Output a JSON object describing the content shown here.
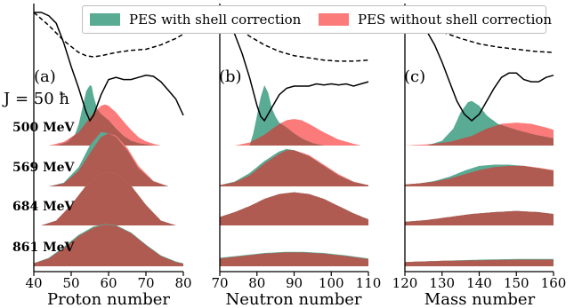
{
  "legend": {
    "with_shell": "PES with shell correction",
    "without_shell": "PES without shell correction"
  },
  "colors": {
    "with_shell": "#5aab94",
    "without_shell": "#fb7b7b",
    "overlap": "#b05b52",
    "j_label": "#ee1111"
  },
  "j_label": "J = 50 ħ",
  "energies": [
    "500 MeV",
    "569 MeV",
    "684 MeV",
    "861 MeV"
  ],
  "chart_data": [
    {
      "type": "area",
      "panel": "(a)",
      "xlabel": "Proton number",
      "xlim": [
        40,
        80
      ],
      "xticks": [
        40,
        50,
        60,
        70,
        80
      ],
      "rows": [
        {
          "energy": "500 MeV",
          "with_shell": {
            "x": [
              46,
              49,
              51,
              52,
              53,
              54,
              55,
              55.5,
              56,
              57,
              58,
              60,
              62,
              64,
              66,
              68,
              70,
              72
            ],
            "y": [
              0,
              0.06,
              0.18,
              0.35,
              0.62,
              0.9,
              1.0,
              0.98,
              0.82,
              0.6,
              0.52,
              0.42,
              0.28,
              0.16,
              0.08,
              0.04,
              0.02,
              0
            ]
          },
          "without_shell": {
            "x": [
              44,
              48,
              52,
              54,
              56,
              58,
              59,
              60,
              62,
              64,
              66,
              68,
              70,
              72,
              74
            ],
            "y": [
              0,
              0.06,
              0.22,
              0.38,
              0.55,
              0.66,
              0.68,
              0.66,
              0.55,
              0.4,
              0.26,
              0.14,
              0.07,
              0.03,
              0
            ]
          }
        },
        {
          "energy": "569 MeV",
          "with_shell": {
            "x": [
              44,
              48,
              52,
              55,
              58,
              60,
              62,
              65,
              68,
              72,
              76
            ],
            "y": [
              0,
              0.06,
              0.32,
              0.68,
              0.9,
              0.88,
              0.82,
              0.6,
              0.3,
              0.08,
              0
            ]
          },
          "without_shell": {
            "x": [
              44,
              48,
              52,
              55,
              58,
              60,
              62,
              65,
              68,
              72,
              76
            ],
            "y": [
              0,
              0.05,
              0.26,
              0.55,
              0.82,
              0.88,
              0.84,
              0.64,
              0.34,
              0.09,
              0
            ]
          }
        },
        {
          "energy": "684 MeV",
          "with_shell": {
            "x": [
              42,
              46,
              50,
              54,
              58,
              60,
              62,
              66,
              70,
              74,
              78
            ],
            "y": [
              0,
              0.08,
              0.34,
              0.66,
              0.86,
              0.88,
              0.86,
              0.66,
              0.34,
              0.08,
              0
            ]
          },
          "without_shell": {
            "x": [
              42,
              46,
              50,
              54,
              58,
              60,
              62,
              66,
              70,
              74,
              78
            ],
            "y": [
              0,
              0.08,
              0.34,
              0.66,
              0.86,
              0.88,
              0.86,
              0.66,
              0.34,
              0.08,
              0
            ]
          }
        },
        {
          "energy": "861 MeV",
          "with_shell": {
            "x": [
              40,
              44,
              48,
              52,
              56,
              59,
              62,
              66,
              70,
              74,
              78,
              80
            ],
            "y": [
              0.05,
              0.14,
              0.32,
              0.52,
              0.66,
              0.7,
              0.68,
              0.56,
              0.36,
              0.18,
              0.08,
              0.05
            ]
          },
          "without_shell": {
            "x": [
              40,
              44,
              48,
              52,
              56,
              59,
              62,
              66,
              70,
              74,
              78,
              80
            ],
            "y": [
              0.05,
              0.13,
              0.3,
              0.5,
              0.64,
              0.69,
              0.67,
              0.55,
              0.35,
              0.17,
              0.07,
              0.04
            ]
          }
        }
      ],
      "pes_with_shell": {
        "x": [
          40,
          42,
          44,
          46,
          48,
          50,
          52,
          54,
          55,
          56,
          58,
          60,
          62,
          64,
          66,
          68,
          70,
          72,
          74,
          76,
          78,
          80
        ],
        "y": [
          1.0,
          1.0,
          0.97,
          0.9,
          0.72,
          0.5,
          0.3,
          0.08,
          0.0,
          0.05,
          0.24,
          0.38,
          0.4,
          0.38,
          0.38,
          0.4,
          0.42,
          0.41,
          0.36,
          0.28,
          0.2,
          0.05
        ]
      },
      "pes_without_shell": {
        "x": [
          40,
          44,
          48,
          52,
          54,
          56,
          58,
          62,
          66,
          70,
          74,
          78,
          80
        ],
        "y": [
          1.0,
          0.88,
          0.74,
          0.63,
          0.6,
          0.59,
          0.6,
          0.63,
          0.65,
          0.66,
          0.7,
          0.76,
          0.8
        ]
      }
    },
    {
      "type": "area",
      "panel": "(b)",
      "xlabel": "Neutron number",
      "xlim": [
        70,
        110
      ],
      "xticks": [
        70,
        80,
        90,
        100,
        110
      ],
      "rows": [
        {
          "energy": "500 MeV",
          "with_shell": {
            "x": [
              78,
              79,
              80,
              81,
              82,
              83,
              84,
              85,
              86,
              88,
              90,
              92,
              95,
              98
            ],
            "y": [
              0,
              0.2,
              0.5,
              0.8,
              1.0,
              0.88,
              0.62,
              0.48,
              0.38,
              0.3,
              0.2,
              0.12,
              0.04,
              0
            ]
          },
          "without_shell": {
            "x": [
              74,
              78,
              82,
              86,
              88,
              90,
              92,
              94,
              98,
              102,
              106,
              108
            ],
            "y": [
              0,
              0.05,
              0.18,
              0.36,
              0.42,
              0.44,
              0.42,
              0.36,
              0.22,
              0.1,
              0.03,
              0
            ]
          }
        },
        {
          "energy": "569 MeV",
          "with_shell": {
            "x": [
              70,
              74,
              78,
              82,
              86,
              88,
              90,
              94,
              98,
              102,
              106,
              110
            ],
            "y": [
              0.02,
              0.08,
              0.22,
              0.42,
              0.58,
              0.62,
              0.6,
              0.5,
              0.34,
              0.18,
              0.07,
              0.02
            ]
          },
          "without_shell": {
            "x": [
              70,
              74,
              78,
              82,
              86,
              88,
              90,
              94,
              98,
              102,
              106,
              110
            ],
            "y": [
              0.02,
              0.07,
              0.18,
              0.38,
              0.54,
              0.6,
              0.6,
              0.52,
              0.36,
              0.2,
              0.08,
              0.02
            ]
          }
        },
        {
          "energy": "684 MeV",
          "with_shell": {
            "x": [
              70,
              74,
              78,
              82,
              86,
              90,
              94,
              98,
              102,
              106,
              110
            ],
            "y": [
              0.14,
              0.22,
              0.32,
              0.44,
              0.52,
              0.55,
              0.52,
              0.44,
              0.32,
              0.2,
              0.1
            ]
          },
          "without_shell": {
            "x": [
              70,
              74,
              78,
              82,
              86,
              90,
              94,
              98,
              102,
              106,
              110
            ],
            "y": [
              0.14,
              0.22,
              0.32,
              0.44,
              0.52,
              0.55,
              0.52,
              0.44,
              0.32,
              0.2,
              0.1
            ]
          }
        },
        {
          "energy": "861 MeV",
          "with_shell": {
            "x": [
              70,
              76,
              82,
              88,
              92,
              98,
              104,
              110
            ],
            "y": [
              0.14,
              0.18,
              0.22,
              0.24,
              0.24,
              0.22,
              0.18,
              0.13
            ]
          },
          "without_shell": {
            "x": [
              70,
              76,
              82,
              88,
              92,
              98,
              104,
              110
            ],
            "y": [
              0.13,
              0.17,
              0.21,
              0.23,
              0.23,
              0.21,
              0.17,
              0.12
            ]
          }
        }
      ],
      "pes_with_shell": {
        "x": [
          70,
          72,
          74,
          76,
          78,
          80,
          81,
          82,
          84,
          86,
          88,
          90,
          92,
          94,
          96,
          98,
          100,
          102,
          104,
          106,
          108,
          110
        ],
        "y": [
          1.0,
          0.92,
          0.8,
          0.62,
          0.4,
          0.14,
          0.04,
          0.0,
          0.12,
          0.24,
          0.3,
          0.32,
          0.32,
          0.32,
          0.34,
          0.33,
          0.34,
          0.33,
          0.34,
          0.32,
          0.34,
          0.36
        ]
      },
      "pes_without_shell": {
        "x": [
          70,
          74,
          78,
          82,
          86,
          90,
          94,
          98,
          102,
          106,
          110
        ],
        "y": [
          1.0,
          0.88,
          0.78,
          0.7,
          0.64,
          0.6,
          0.58,
          0.56,
          0.55,
          0.55,
          0.56
        ]
      }
    },
    {
      "type": "area",
      "panel": "(c)",
      "xlabel": "Mass number",
      "xlim": [
        120,
        160
      ],
      "xticks": [
        120,
        130,
        140,
        150,
        160
      ],
      "rows": [
        {
          "energy": "500 MeV",
          "with_shell": {
            "x": [
              126,
              130,
              133,
              135,
              137,
              138,
              140,
              142,
              145,
              150,
              155,
              160
            ],
            "y": [
              0,
              0.08,
              0.28,
              0.55,
              0.72,
              0.74,
              0.66,
              0.5,
              0.36,
              0.26,
              0.18,
              0.12
            ]
          },
          "without_shell": {
            "x": [
              120,
              126,
              132,
              138,
              142,
              146,
              150,
              154,
              158,
              160
            ],
            "y": [
              0,
              0.02,
              0.06,
              0.16,
              0.28,
              0.36,
              0.38,
              0.36,
              0.3,
              0.26
            ]
          }
        },
        {
          "energy": "569 MeV",
          "with_shell": {
            "x": [
              120,
              124,
              128,
              132,
              136,
              140,
              144,
              148,
              152,
              156,
              160
            ],
            "y": [
              0.03,
              0.05,
              0.09,
              0.16,
              0.26,
              0.34,
              0.36,
              0.36,
              0.34,
              0.3,
              0.26
            ]
          },
          "without_shell": {
            "x": [
              120,
              124,
              128,
              132,
              136,
              140,
              144,
              148,
              152,
              156,
              160
            ],
            "y": [
              0.03,
              0.05,
              0.08,
              0.13,
              0.2,
              0.27,
              0.32,
              0.34,
              0.34,
              0.31,
              0.27
            ]
          }
        },
        {
          "energy": "684 MeV",
          "with_shell": {
            "x": [
              120,
              126,
              132,
              138,
              144,
              150,
              156,
              160
            ],
            "y": [
              0.06,
              0.09,
              0.14,
              0.19,
              0.22,
              0.24,
              0.22,
              0.19
            ]
          },
          "without_shell": {
            "x": [
              120,
              126,
              132,
              138,
              144,
              150,
              156,
              160
            ],
            "y": [
              0.06,
              0.09,
              0.14,
              0.19,
              0.22,
              0.24,
              0.22,
              0.19
            ]
          }
        },
        {
          "energy": "861 MeV",
          "with_shell": {
            "x": [
              120,
              130,
              140,
              150,
              160
            ],
            "y": [
              0.07,
              0.09,
              0.11,
              0.12,
              0.12
            ]
          },
          "without_shell": {
            "x": [
              120,
              130,
              140,
              150,
              160
            ],
            "y": [
              0.07,
              0.09,
              0.1,
              0.11,
              0.11
            ]
          }
        }
      ],
      "pes_with_shell": {
        "x": [
          120,
          122,
          124,
          126,
          128,
          130,
          132,
          134,
          136,
          138,
          140,
          142,
          144,
          146,
          148,
          150,
          152,
          154,
          156,
          158,
          160
        ],
        "y": [
          1.0,
          0.96,
          0.9,
          0.82,
          0.7,
          0.54,
          0.36,
          0.18,
          0.06,
          0.0,
          0.06,
          0.18,
          0.3,
          0.4,
          0.44,
          0.44,
          0.38,
          0.36,
          0.36,
          0.4,
          0.42
        ]
      },
      "pes_without_shell": {
        "x": [
          120,
          125,
          130,
          135,
          140,
          145,
          150,
          155,
          160
        ],
        "y": [
          1.0,
          0.9,
          0.82,
          0.76,
          0.71,
          0.68,
          0.66,
          0.64,
          0.63
        ]
      }
    }
  ]
}
